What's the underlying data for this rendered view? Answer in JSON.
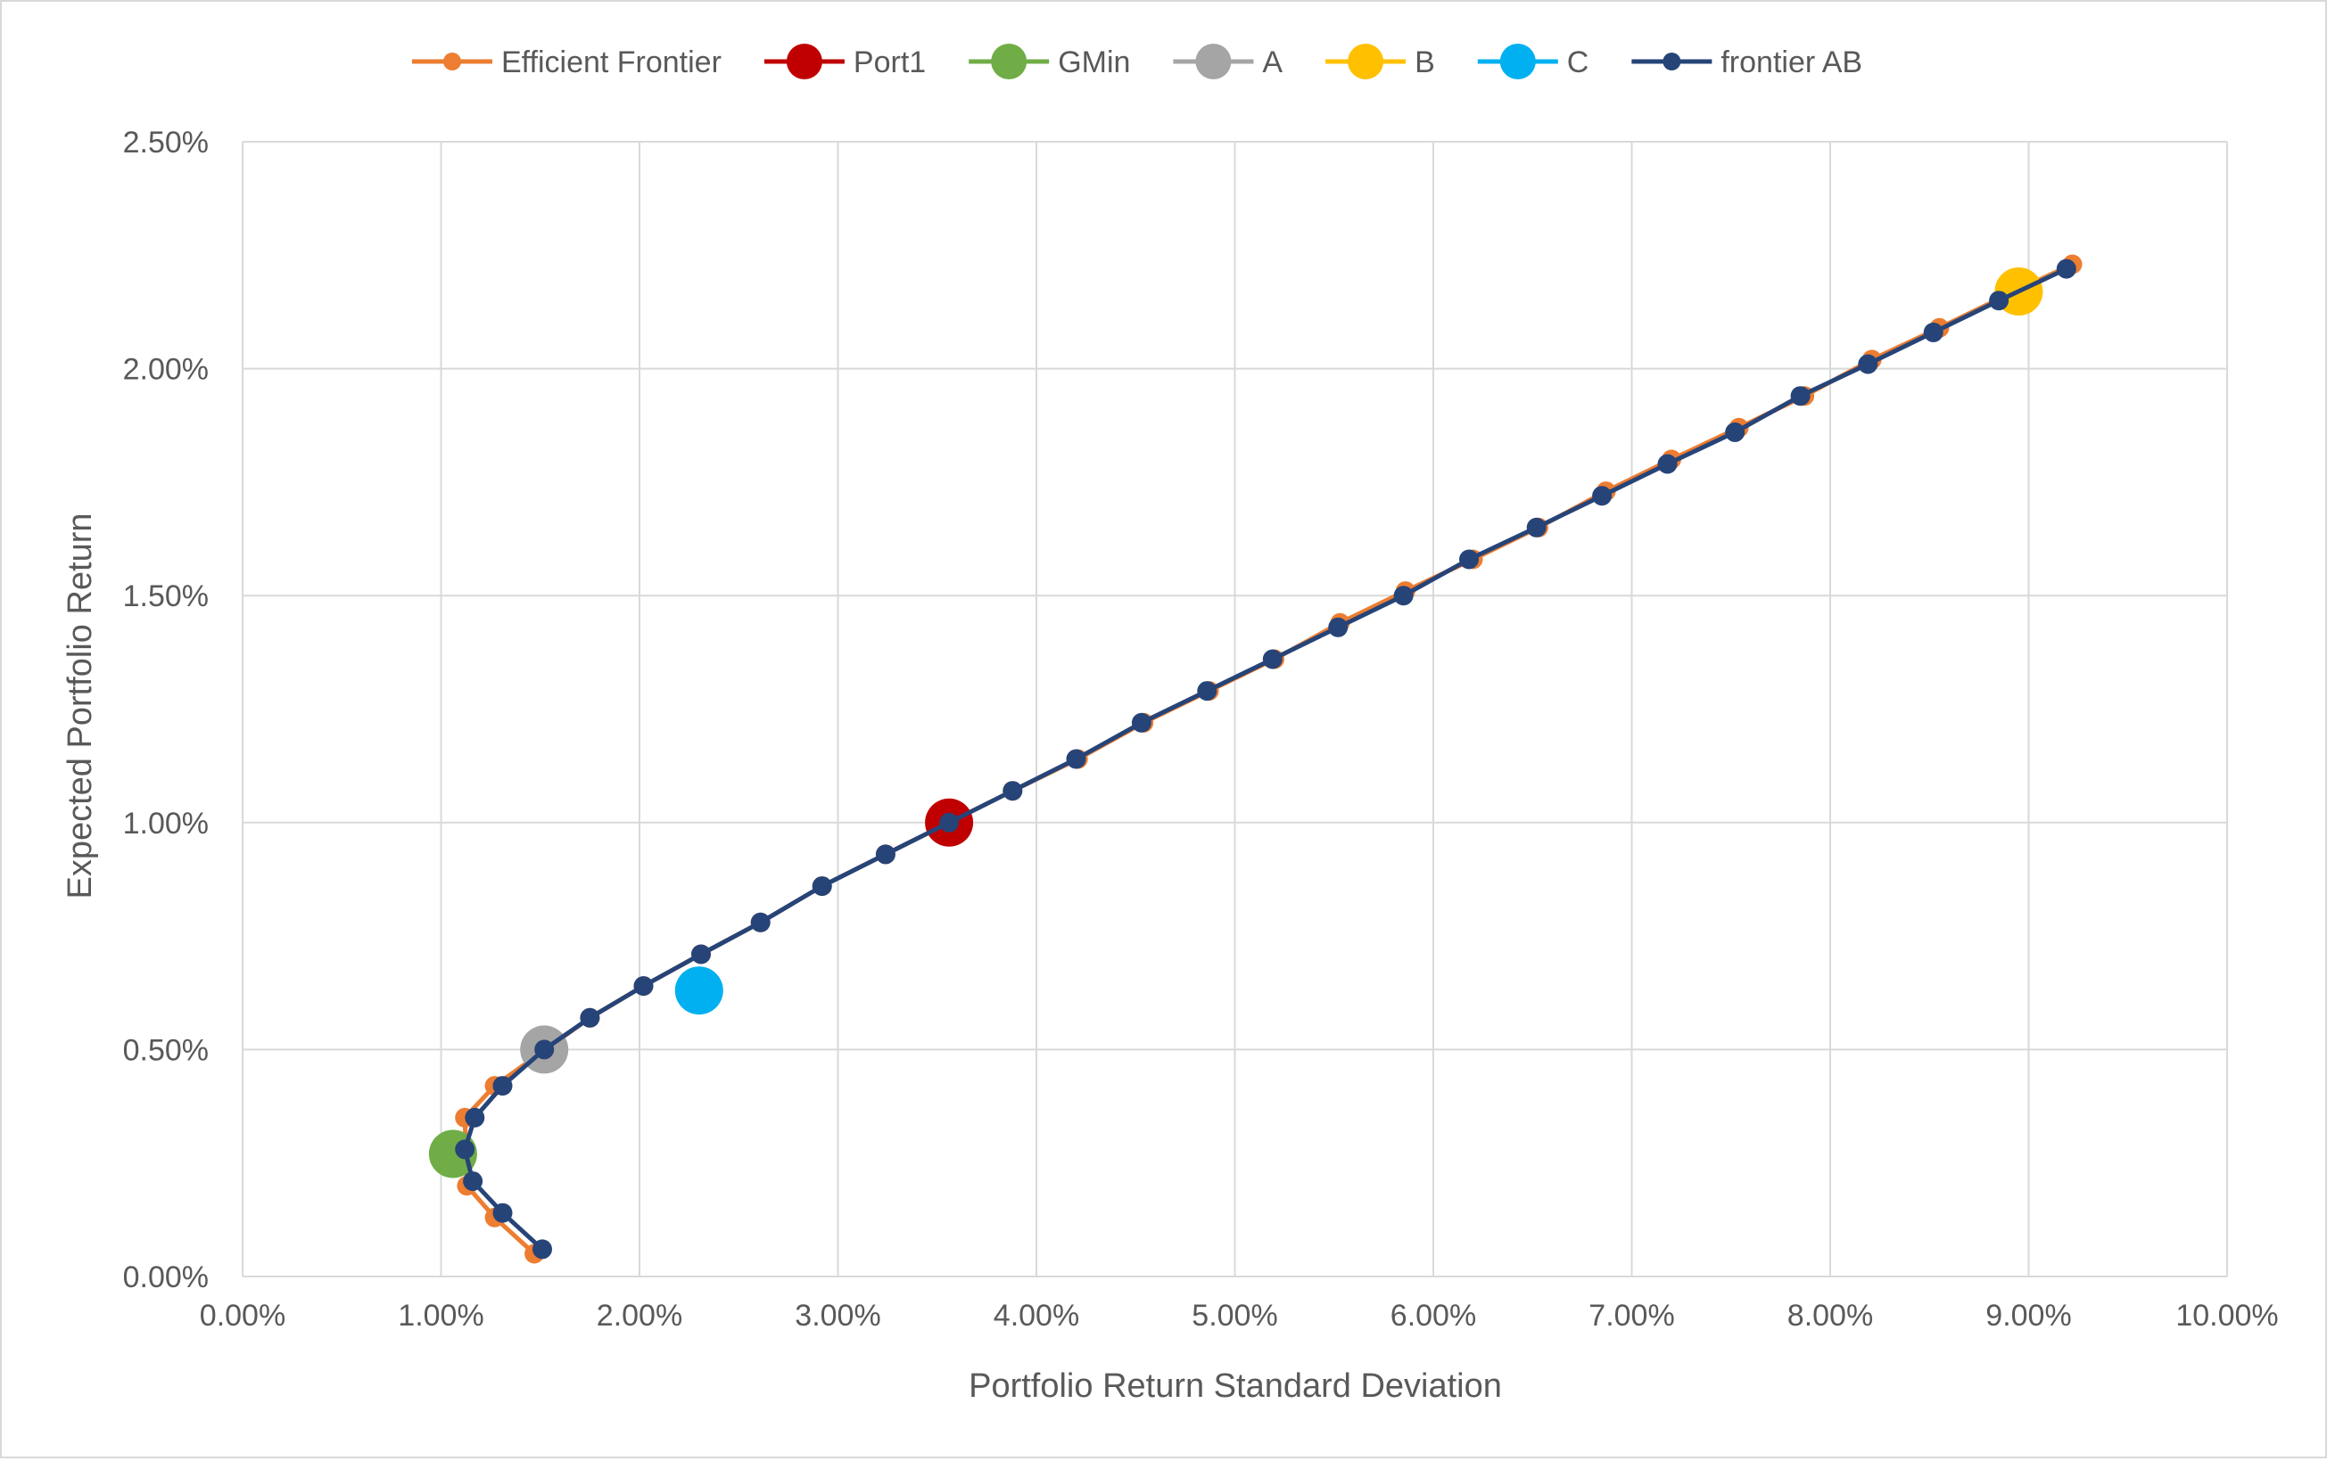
{
  "chart_data": {
    "type": "scatter",
    "title": "",
    "xlabel": "Portfolio Return Standard Deviation",
    "ylabel": "Expected Portfolio Return",
    "xlim": [
      0,
      0.1
    ],
    "ylim": [
      0,
      0.025
    ],
    "x_ticks": [
      0,
      0.01,
      0.02,
      0.03,
      0.04,
      0.05,
      0.06,
      0.07,
      0.08,
      0.09,
      0.1
    ],
    "x_tick_labels": [
      "0.00%",
      "1.00%",
      "2.00%",
      "3.00%",
      "4.00%",
      "5.00%",
      "6.00%",
      "7.00%",
      "8.00%",
      "9.00%",
      "10.00%"
    ],
    "y_ticks": [
      0,
      0.005,
      0.01,
      0.015,
      0.02,
      0.025
    ],
    "y_tick_labels": [
      "0.00%",
      "0.50%",
      "1.00%",
      "1.50%",
      "2.00%",
      "2.50%"
    ],
    "grid": true,
    "legend_position": "top-center",
    "series": [
      {
        "name": "Efficient Frontier",
        "color": "#ED7D31",
        "marker": "small",
        "line": true,
        "x": [
          0.0147,
          0.0127,
          0.0113,
          0.0112,
          0.0127,
          0.0175,
          0.0202,
          0.0231,
          0.0261,
          0.0292,
          0.0324,
          0.0356,
          0.0388,
          0.0421,
          0.0454,
          0.0487,
          0.052,
          0.0553,
          0.0586,
          0.062,
          0.0653,
          0.0687,
          0.072,
          0.0754,
          0.0787,
          0.0821,
          0.0855,
          0.0888,
          0.0922
        ],
        "y": [
          0.0005,
          0.0013,
          0.002,
          0.0035,
          0.0042,
          0.0057,
          0.0064,
          0.0071,
          0.0078,
          0.0086,
          0.0093,
          0.01,
          0.0107,
          0.0114,
          0.0122,
          0.0129,
          0.0136,
          0.0144,
          0.0151,
          0.0158,
          0.0165,
          0.0173,
          0.018,
          0.0187,
          0.0194,
          0.0202,
          0.0209,
          0.0216,
          0.0223
        ]
      },
      {
        "name": "Port1",
        "color": "#C00000",
        "marker": "large",
        "line": false,
        "x": [
          0.0356
        ],
        "y": [
          0.01
        ]
      },
      {
        "name": "GMin",
        "color": "#70AD47",
        "marker": "large",
        "line": false,
        "x": [
          0.0106
        ],
        "y": [
          0.0027
        ]
      },
      {
        "name": "A",
        "color": "#A5A5A5",
        "marker": "large",
        "line": false,
        "x": [
          0.0152
        ],
        "y": [
          0.005
        ]
      },
      {
        "name": "B",
        "color": "#FFC000",
        "marker": "large",
        "line": false,
        "x": [
          0.0895
        ],
        "y": [
          0.0217
        ]
      },
      {
        "name": "C",
        "color": "#00B0F0",
        "marker": "large",
        "line": false,
        "x": [
          0.023
        ],
        "y": [
          0.0063
        ]
      },
      {
        "name": "frontier AB",
        "color": "#264478",
        "marker": "small",
        "line": true,
        "x": [
          0.0151,
          0.0131,
          0.0116,
          0.0112,
          0.0117,
          0.0131,
          0.0152,
          0.0175,
          0.0202,
          0.0231,
          0.0261,
          0.0292,
          0.0324,
          0.0356,
          0.0388,
          0.042,
          0.0453,
          0.0486,
          0.0519,
          0.0552,
          0.0585,
          0.0618,
          0.0652,
          0.0685,
          0.0718,
          0.0752,
          0.0785,
          0.0819,
          0.0852,
          0.0885,
          0.0919
        ],
        "y": [
          0.0006,
          0.0014,
          0.0021,
          0.0028,
          0.0035,
          0.0042,
          0.005,
          0.0057,
          0.0064,
          0.0071,
          0.0078,
          0.0086,
          0.0093,
          0.01,
          0.0107,
          0.0114,
          0.0122,
          0.0129,
          0.0136,
          0.0143,
          0.015,
          0.0158,
          0.0165,
          0.0172,
          0.0179,
          0.0186,
          0.0194,
          0.0201,
          0.0208,
          0.0215,
          0.0222
        ]
      }
    ]
  }
}
